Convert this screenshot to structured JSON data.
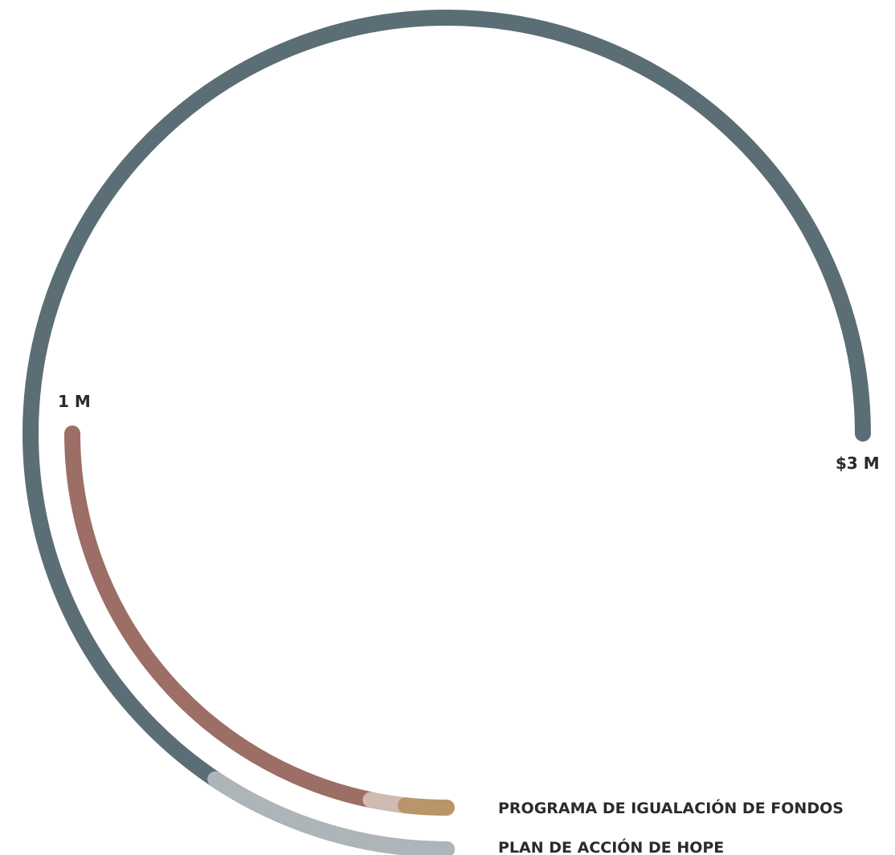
{
  "chart_data": {
    "type": "radial-progress",
    "title": "",
    "outer_ring": {
      "name": "",
      "color": "#5b6e75",
      "start_label": "",
      "end_label": "$3 M",
      "max": 3000000,
      "segments": [
        {
          "name": "PLAN DE ACCIÓN DE HOPE",
          "value": 375000,
          "color": "#aeb5b9"
        }
      ]
    },
    "inner_ring": {
      "name": "",
      "max_label": "1 M",
      "max": 1000000,
      "segments": [
        {
          "name": "PROGRAMA DE IGUALACIÓN DE FONDOS",
          "value": 70000,
          "color": "#b9956a"
        },
        {
          "name": "",
          "value": 60000,
          "color": "#cfbbb2"
        },
        {
          "name": "",
          "value": 870000,
          "color": "#9c6e66"
        }
      ]
    },
    "legend": {
      "placement": "bottom-right",
      "items": [
        {
          "label": "PROGRAMA DE IGUALACIÓN DE FONDOS",
          "ring": "inner"
        },
        {
          "label": "PLAN DE ACCIÓN DE HOPE",
          "ring": "outer"
        }
      ]
    }
  }
}
